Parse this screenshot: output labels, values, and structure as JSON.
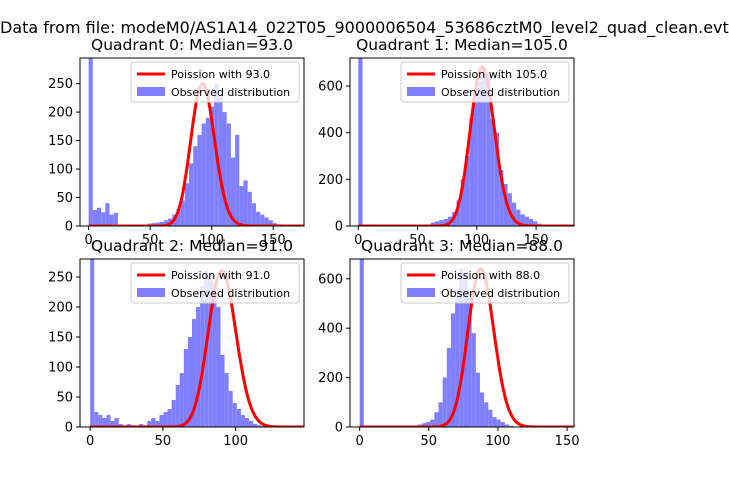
{
  "figure": {
    "suptitle": "Data from file: modeM0/AS1A14_022T05_9000006504_53686cztM0_level2_quad_clean.evt"
  },
  "colors": {
    "poisson_line": "#ff0000",
    "histogram": "#7f7fff"
  },
  "chart_data": [
    {
      "type": "bar",
      "title": "Quadrant 0: Median=93.0",
      "median": 93.0,
      "xlim": [
        -7,
        175
      ],
      "ylim": [
        0,
        295
      ],
      "xticks": [
        0,
        50,
        100,
        150
      ],
      "yticks": [
        0,
        50,
        100,
        150,
        200,
        250
      ],
      "legend_position": "upper right",
      "legend": [
        "Poission with 93.0",
        "Observed distribution"
      ],
      "bin_width": 3.4,
      "bins_start": 0,
      "values": [
        295,
        28,
        32,
        24,
        40,
        20,
        23,
        0,
        0,
        0,
        0,
        0,
        0,
        0,
        4,
        5,
        6,
        7,
        10,
        13,
        20,
        30,
        45,
        75,
        110,
        140,
        160,
        180,
        190,
        210,
        250,
        230,
        200,
        180,
        120,
        160,
        70,
        80,
        60,
        40,
        25,
        20,
        15,
        10,
        5,
        3,
        2,
        1,
        0
      ]
    },
    {
      "type": "bar",
      "title": "Quadrant 1: Median=105.0",
      "median": 105.0,
      "xlim": [
        -7,
        182
      ],
      "ylim": [
        0,
        720
      ],
      "xticks": [
        0,
        50,
        100,
        150
      ],
      "yticks": [
        0,
        200,
        400,
        600
      ],
      "legend_position": "upper right",
      "legend": [
        "Poission with 105.0",
        "Observed distribution"
      ],
      "bin_width": 3.6,
      "bins_start": 0,
      "values": [
        720,
        0,
        0,
        0,
        0,
        0,
        0,
        0,
        0,
        0,
        0,
        0,
        0,
        0,
        0,
        0,
        0,
        15,
        20,
        25,
        30,
        40,
        60,
        110,
        200,
        300,
        460,
        560,
        620,
        680,
        650,
        460,
        400,
        240,
        180,
        140,
        100,
        70,
        50,
        40,
        30,
        20,
        10,
        5,
        2
      ]
    },
    {
      "type": "bar",
      "title": "Quadrant 2: Median=91.0",
      "median": 91.0,
      "xlim": [
        -7,
        147
      ],
      "ylim": [
        0,
        280
      ],
      "xticks": [
        0,
        50,
        100
      ],
      "yticks": [
        0,
        50,
        100,
        150,
        200,
        250
      ],
      "legend_position": "upper right",
      "legend": [
        "Poission with 91.0",
        "Observed distribution"
      ],
      "bin_width": 2.8,
      "bins_start": 0,
      "values": [
        280,
        25,
        20,
        15,
        20,
        10,
        15,
        5,
        3,
        5,
        3,
        2,
        5,
        3,
        10,
        15,
        10,
        20,
        25,
        30,
        45,
        70,
        90,
        130,
        150,
        180,
        200,
        235,
        260,
        250,
        240,
        200,
        120,
        90,
        60,
        40,
        30,
        20,
        15,
        10,
        5,
        3,
        2,
        1
      ]
    },
    {
      "type": "bar",
      "title": "Quadrant 3: Median=88.0",
      "median": 88.0,
      "xlim": [
        -7,
        155
      ],
      "ylim": [
        0,
        680
      ],
      "xticks": [
        0,
        50,
        100,
        150
      ],
      "yticks": [
        0,
        200,
        400,
        600
      ],
      "legend_position": "upper right",
      "legend": [
        "Poission with 88.0",
        "Observed distribution"
      ],
      "bin_width": 3.0,
      "bins_start": 0,
      "values": [
        680,
        0,
        0,
        0,
        0,
        0,
        0,
        0,
        0,
        0,
        0,
        0,
        0,
        0,
        10,
        15,
        20,
        30,
        60,
        100,
        200,
        320,
        460,
        560,
        640,
        620,
        520,
        380,
        220,
        140,
        100,
        70,
        40,
        30,
        20,
        10,
        5,
        2,
        1,
        0,
        0,
        0,
        0,
        0,
        0,
        0,
        0,
        0,
        0
      ]
    }
  ]
}
